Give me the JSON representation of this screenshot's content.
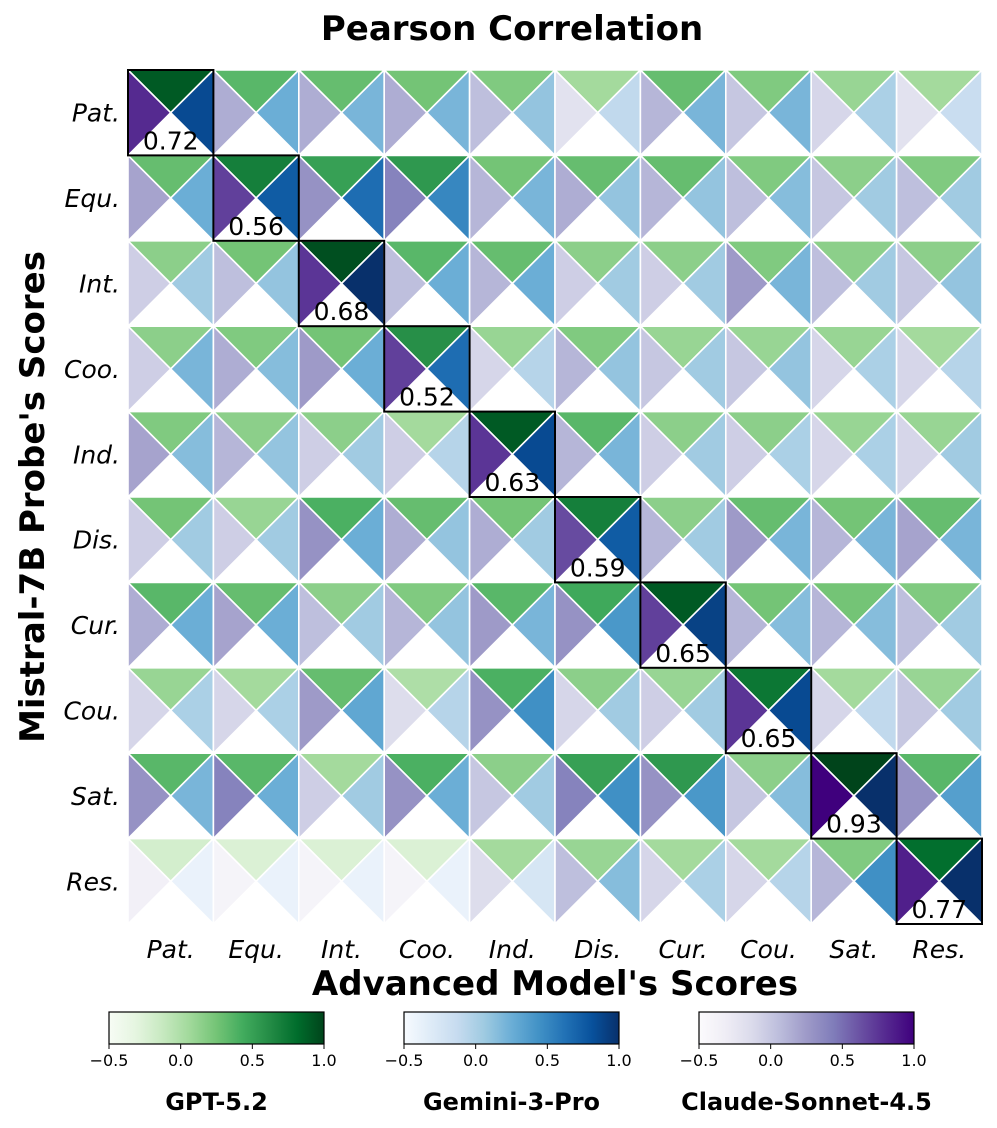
{
  "chart_data": {
    "type": "heatmap",
    "title": "Pearson Correlation",
    "xlabel": "Advanced Model's Scores",
    "ylabel": "Mistral-7B Probe's Scores",
    "categories": [
      "Pat.",
      "Equ.",
      "Int.",
      "Coo.",
      "Ind.",
      "Dis.",
      "Cur.",
      "Cou.",
      "Sat.",
      "Res."
    ],
    "diagonal_labels": [
      "0.72",
      "0.56",
      "0.68",
      "0.52",
      "0.63",
      "0.59",
      "0.65",
      "0.65",
      "0.93",
      "0.77"
    ],
    "color_range": [
      -0.5,
      1.0
    ],
    "colorbar_ticks": [
      "−0.5",
      "0.0",
      "0.5",
      "1.0"
    ],
    "series": [
      {
        "name": "GPT-5.2",
        "colormap": "Greens",
        "position": "top",
        "values": [
          [
            0.9,
            0.35,
            0.3,
            0.25,
            0.2,
            0.05,
            0.3,
            0.2,
            0.1,
            0.05
          ],
          [
            0.3,
            0.7,
            0.5,
            0.55,
            0.25,
            0.3,
            0.3,
            0.2,
            0.15,
            0.2
          ],
          [
            0.15,
            0.25,
            0.95,
            0.35,
            0.3,
            0.15,
            0.15,
            0.2,
            0.15,
            0.15
          ],
          [
            0.15,
            0.2,
            0.25,
            0.6,
            0.1,
            0.2,
            0.1,
            0.1,
            0.1,
            0.05
          ],
          [
            0.2,
            0.15,
            0.15,
            0.05,
            0.9,
            0.35,
            0.15,
            0.15,
            0.1,
            0.1
          ],
          [
            0.25,
            0.1,
            0.4,
            0.3,
            0.25,
            0.7,
            0.15,
            0.3,
            0.25,
            0.3
          ],
          [
            0.35,
            0.3,
            0.15,
            0.2,
            0.35,
            0.45,
            0.9,
            0.25,
            0.25,
            0.2
          ],
          [
            0.1,
            0.05,
            0.3,
            0.0,
            0.4,
            0.15,
            0.1,
            0.75,
            0.05,
            0.1
          ],
          [
            0.35,
            0.35,
            0.05,
            0.4,
            0.15,
            0.5,
            0.55,
            0.15,
            1.0,
            0.35
          ],
          [
            -0.2,
            -0.25,
            -0.25,
            -0.25,
            0.05,
            0.1,
            0.05,
            0.05,
            0.2,
            0.8
          ]
        ]
      },
      {
        "name": "Gemini-3-Pro",
        "colormap": "Blues",
        "position": "right",
        "values": [
          [
            0.85,
            0.25,
            0.2,
            0.2,
            0.1,
            -0.1,
            0.2,
            0.2,
            0.0,
            -0.15
          ],
          [
            0.25,
            0.75,
            0.65,
            0.5,
            0.2,
            0.1,
            0.1,
            0.15,
            0.05,
            0.05
          ],
          [
            0.05,
            0.1,
            1.0,
            0.25,
            0.25,
            0.05,
            0.05,
            0.2,
            0.05,
            0.1
          ],
          [
            0.2,
            0.15,
            0.25,
            0.65,
            -0.05,
            0.1,
            0.05,
            0.1,
            0.0,
            -0.05
          ],
          [
            0.15,
            0.1,
            0.05,
            -0.05,
            0.85,
            0.2,
            0.05,
            0.0,
            0.0,
            0.05
          ],
          [
            0.05,
            0.05,
            0.25,
            0.1,
            0.05,
            0.75,
            0.05,
            0.2,
            0.2,
            0.2
          ],
          [
            0.25,
            0.25,
            0.05,
            0.1,
            0.2,
            0.4,
            0.9,
            0.15,
            0.15,
            0.05
          ],
          [
            0.0,
            0.0,
            0.3,
            -0.05,
            0.45,
            0.05,
            0.05,
            0.85,
            -0.1,
            0.05
          ],
          [
            0.2,
            0.25,
            0.05,
            0.25,
            0.05,
            0.45,
            0.4,
            0.15,
            1.0,
            0.35
          ],
          [
            -0.4,
            -0.4,
            -0.4,
            -0.4,
            -0.25,
            0.15,
            0.0,
            -0.05,
            0.45,
            1.0
          ]
        ]
      },
      {
        "name": "Claude-Sonnet-4.5",
        "colormap": "Purples",
        "position": "left",
        "values": [
          [
            0.8,
            0.15,
            0.15,
            0.15,
            0.05,
            -0.2,
            0.1,
            0.0,
            -0.1,
            -0.2
          ],
          [
            0.2,
            0.7,
            0.3,
            0.4,
            0.1,
            0.15,
            0.1,
            0.05,
            0.0,
            0.05
          ],
          [
            -0.05,
            0.05,
            0.75,
            0.05,
            0.1,
            -0.05,
            -0.05,
            0.25,
            0.05,
            0.0
          ],
          [
            -0.05,
            0.15,
            0.25,
            0.7,
            -0.1,
            0.1,
            0.0,
            0.0,
            -0.1,
            -0.1
          ],
          [
            0.2,
            0.1,
            -0.05,
            -0.05,
            0.75,
            0.1,
            -0.05,
            -0.05,
            -0.1,
            -0.1
          ],
          [
            -0.05,
            -0.05,
            0.3,
            0.15,
            0.15,
            0.65,
            0.1,
            0.25,
            0.1,
            0.2
          ],
          [
            0.15,
            0.2,
            0.05,
            0.1,
            0.25,
            0.3,
            0.7,
            0.1,
            0.1,
            0.05
          ],
          [
            -0.1,
            -0.1,
            0.25,
            -0.15,
            0.3,
            -0.1,
            -0.05,
            0.75,
            -0.1,
            0.0
          ],
          [
            0.3,
            0.4,
            -0.05,
            0.3,
            0.0,
            0.4,
            0.3,
            0.0,
            1.0,
            0.3
          ],
          [
            -0.35,
            -0.4,
            -0.4,
            -0.4,
            -0.15,
            0.05,
            -0.1,
            -0.1,
            0.1,
            0.85
          ]
        ]
      }
    ]
  }
}
